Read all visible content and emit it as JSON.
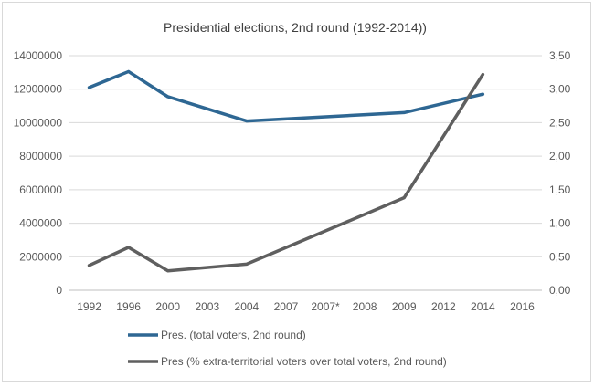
{
  "chart_data": {
    "type": "line",
    "title": "Presidential elections, 2nd round (1992-2014))",
    "categories": [
      "1992",
      "1996",
      "2000",
      "2003",
      "2004",
      "2007",
      "2007*",
      "2008",
      "2009",
      "2012",
      "2014",
      "2016"
    ],
    "left_axis": {
      "ylim": [
        0,
        14000000
      ],
      "ticks": [
        "0",
        "2000000",
        "4000000",
        "6000000",
        "8000000",
        "10000000",
        "12000000",
        "14000000"
      ]
    },
    "right_axis": {
      "ylim": [
        0,
        3.5
      ],
      "ticks": [
        "0,00",
        "0,50",
        "1,00",
        "1,50",
        "2,00",
        "2,50",
        "3,00",
        "3,50"
      ]
    },
    "grid": true,
    "legend_position": "bottom",
    "series": [
      {
        "name": "Pres. (total voters, 2nd round)",
        "axis": "left",
        "color": "#2e6793",
        "points": [
          {
            "x": "1992",
            "y": 12100000
          },
          {
            "x": "1996",
            "y": 13050000
          },
          {
            "x": "2000",
            "y": 11550000
          },
          {
            "x": "2004",
            "y": 10100000
          },
          {
            "x": "2009",
            "y": 10600000
          },
          {
            "x": "2014",
            "y": 11700000
          }
        ]
      },
      {
        "name": "Pres (% extra-territorial voters over total voters, 2nd round)",
        "axis": "right",
        "color": "#5f5f5f",
        "points": [
          {
            "x": "1992",
            "y": 0.37
          },
          {
            "x": "1996",
            "y": 0.64
          },
          {
            "x": "2000",
            "y": 0.29
          },
          {
            "x": "2004",
            "y": 0.39
          },
          {
            "x": "2009",
            "y": 1.38
          },
          {
            "x": "2014",
            "y": 3.22
          }
        ]
      }
    ]
  }
}
